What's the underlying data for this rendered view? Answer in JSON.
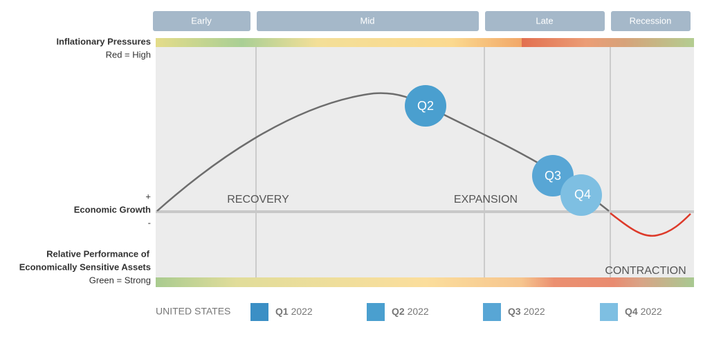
{
  "phases": [
    "Early",
    "Mid",
    "Late",
    "Recession"
  ],
  "left_labels": {
    "inflation_title": "Inflationary Pressures",
    "inflation_note": "Red = High",
    "plus": "+",
    "growth": "Economic Growth",
    "minus": "-",
    "assets_line1": "Relative Performance of",
    "assets_line2": "Economically Sensitive Assets",
    "assets_note": "Green = Strong"
  },
  "regions": {
    "recovery": "RECOVERY",
    "expansion": "EXPANSION",
    "contraction": "CONTRACTION"
  },
  "bubbles": [
    "Q2",
    "Q3",
    "Q4"
  ],
  "legend": {
    "country": "UNITED STATES",
    "items": [
      {
        "quarter": "Q1",
        "year": "2022"
      },
      {
        "quarter": "Q2",
        "year": "2022"
      },
      {
        "quarter": "Q3",
        "year": "2022"
      },
      {
        "quarter": "Q4",
        "year": "2022"
      }
    ]
  }
}
